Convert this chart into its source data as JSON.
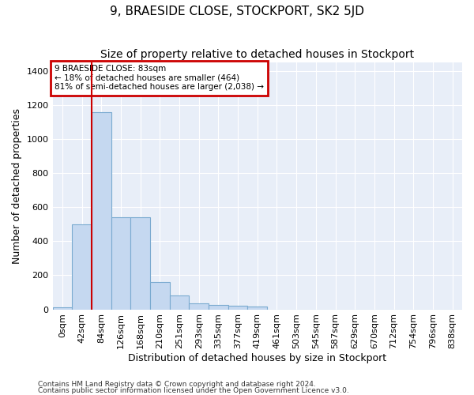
{
  "title": "9, BRAESIDE CLOSE, STOCKPORT, SK2 5JD",
  "subtitle": "Size of property relative to detached houses in Stockport",
  "xlabel": "Distribution of detached houses by size in Stockport",
  "ylabel": "Number of detached properties",
  "bar_values": [
    10,
    500,
    1160,
    540,
    540,
    160,
    80,
    35,
    28,
    20,
    15,
    0,
    0,
    0,
    0,
    0,
    0,
    0,
    0,
    0,
    0
  ],
  "bar_labels": [
    "0sqm",
    "42sqm",
    "84sqm",
    "126sqm",
    "168sqm",
    "210sqm",
    "251sqm",
    "293sqm",
    "335sqm",
    "377sqm",
    "419sqm",
    "461sqm",
    "503sqm",
    "545sqm",
    "587sqm",
    "629sqm",
    "670sqm",
    "712sqm",
    "754sqm",
    "796sqm",
    "838sqm"
  ],
  "bar_color": "#c5d8f0",
  "bar_edge_color": "#7aaad0",
  "vline_x": 2,
  "vline_color": "#cc0000",
  "ylim": [
    0,
    1450
  ],
  "yticks": [
    0,
    200,
    400,
    600,
    800,
    1000,
    1200,
    1400
  ],
  "annotation_title": "9 BRAESIDE CLOSE: 83sqm",
  "annotation_line1": "← 18% of detached houses are smaller (464)",
  "annotation_line2": "81% of semi-detached houses are larger (2,038) →",
  "annotation_box_color": "#cc0000",
  "footnote1": "Contains HM Land Registry data © Crown copyright and database right 2024.",
  "footnote2": "Contains public sector information licensed under the Open Government Licence v3.0.",
  "plot_bg_color": "#e8eef8",
  "fig_bg_color": "#ffffff",
  "grid_color": "#ffffff",
  "title_fontsize": 11,
  "subtitle_fontsize": 10,
  "axis_label_fontsize": 9,
  "tick_fontsize": 8,
  "footnote_fontsize": 6.5
}
